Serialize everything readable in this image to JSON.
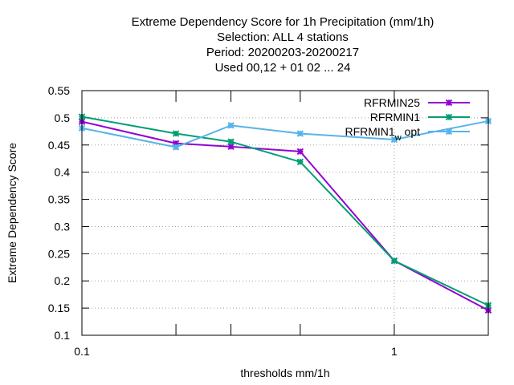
{
  "chart_data": {
    "type": "line",
    "title_lines": [
      "Extreme Dependency Score  for 1h Precipitation (mm/1h)",
      "Selection: ALL      4 stations",
      "Period: 20200203-20200217",
      "Used  00,12  + 01 02 ... 24"
    ],
    "xlabel": "thresholds mm/1h",
    "ylabel": "Extreme Dependency Score",
    "xscale": "log",
    "xlim": [
      0.1,
      2.0
    ],
    "ylim": [
      0.1,
      0.55
    ],
    "xticks": [
      {
        "value": 0.1,
        "label": "0.1"
      },
      {
        "value": 1,
        "label": "1"
      }
    ],
    "x_minor_ticks": [
      0.2,
      0.3,
      0.5,
      2.0
    ],
    "yticks": [
      {
        "value": 0.1,
        "label": "0.1"
      },
      {
        "value": 0.15,
        "label": "0.15"
      },
      {
        "value": 0.2,
        "label": "0.2"
      },
      {
        "value": 0.25,
        "label": "0.25"
      },
      {
        "value": 0.3,
        "label": "0.3"
      },
      {
        "value": 0.35,
        "label": "0.35"
      },
      {
        "value": 0.4,
        "label": "0.4"
      },
      {
        "value": 0.45,
        "label": "0.45"
      },
      {
        "value": 0.5,
        "label": "0.5"
      },
      {
        "value": 0.55,
        "label": "0.55"
      }
    ],
    "grid": true,
    "legend_position": "top-right",
    "x": [
      0.1,
      0.2,
      0.3,
      0.5,
      1.0,
      2.0
    ],
    "series": [
      {
        "name": "RFRMIN25",
        "name_sub": "",
        "name_after": "",
        "color": "#9400d3",
        "values": [
          0.493,
          0.453,
          0.447,
          0.438,
          0.237,
          0.146
        ]
      },
      {
        "name": "RFRMIN1",
        "name_sub": "",
        "name_after": "",
        "color": "#009e73",
        "values": [
          0.502,
          0.471,
          0.456,
          0.419,
          0.237,
          0.155
        ]
      },
      {
        "name": "RFRMIN1",
        "name_sub": "w",
        "name_after": "opt",
        "color": "#56b4e9",
        "values": [
          0.481,
          0.446,
          0.486,
          0.471,
          0.46,
          0.494
        ]
      }
    ]
  }
}
